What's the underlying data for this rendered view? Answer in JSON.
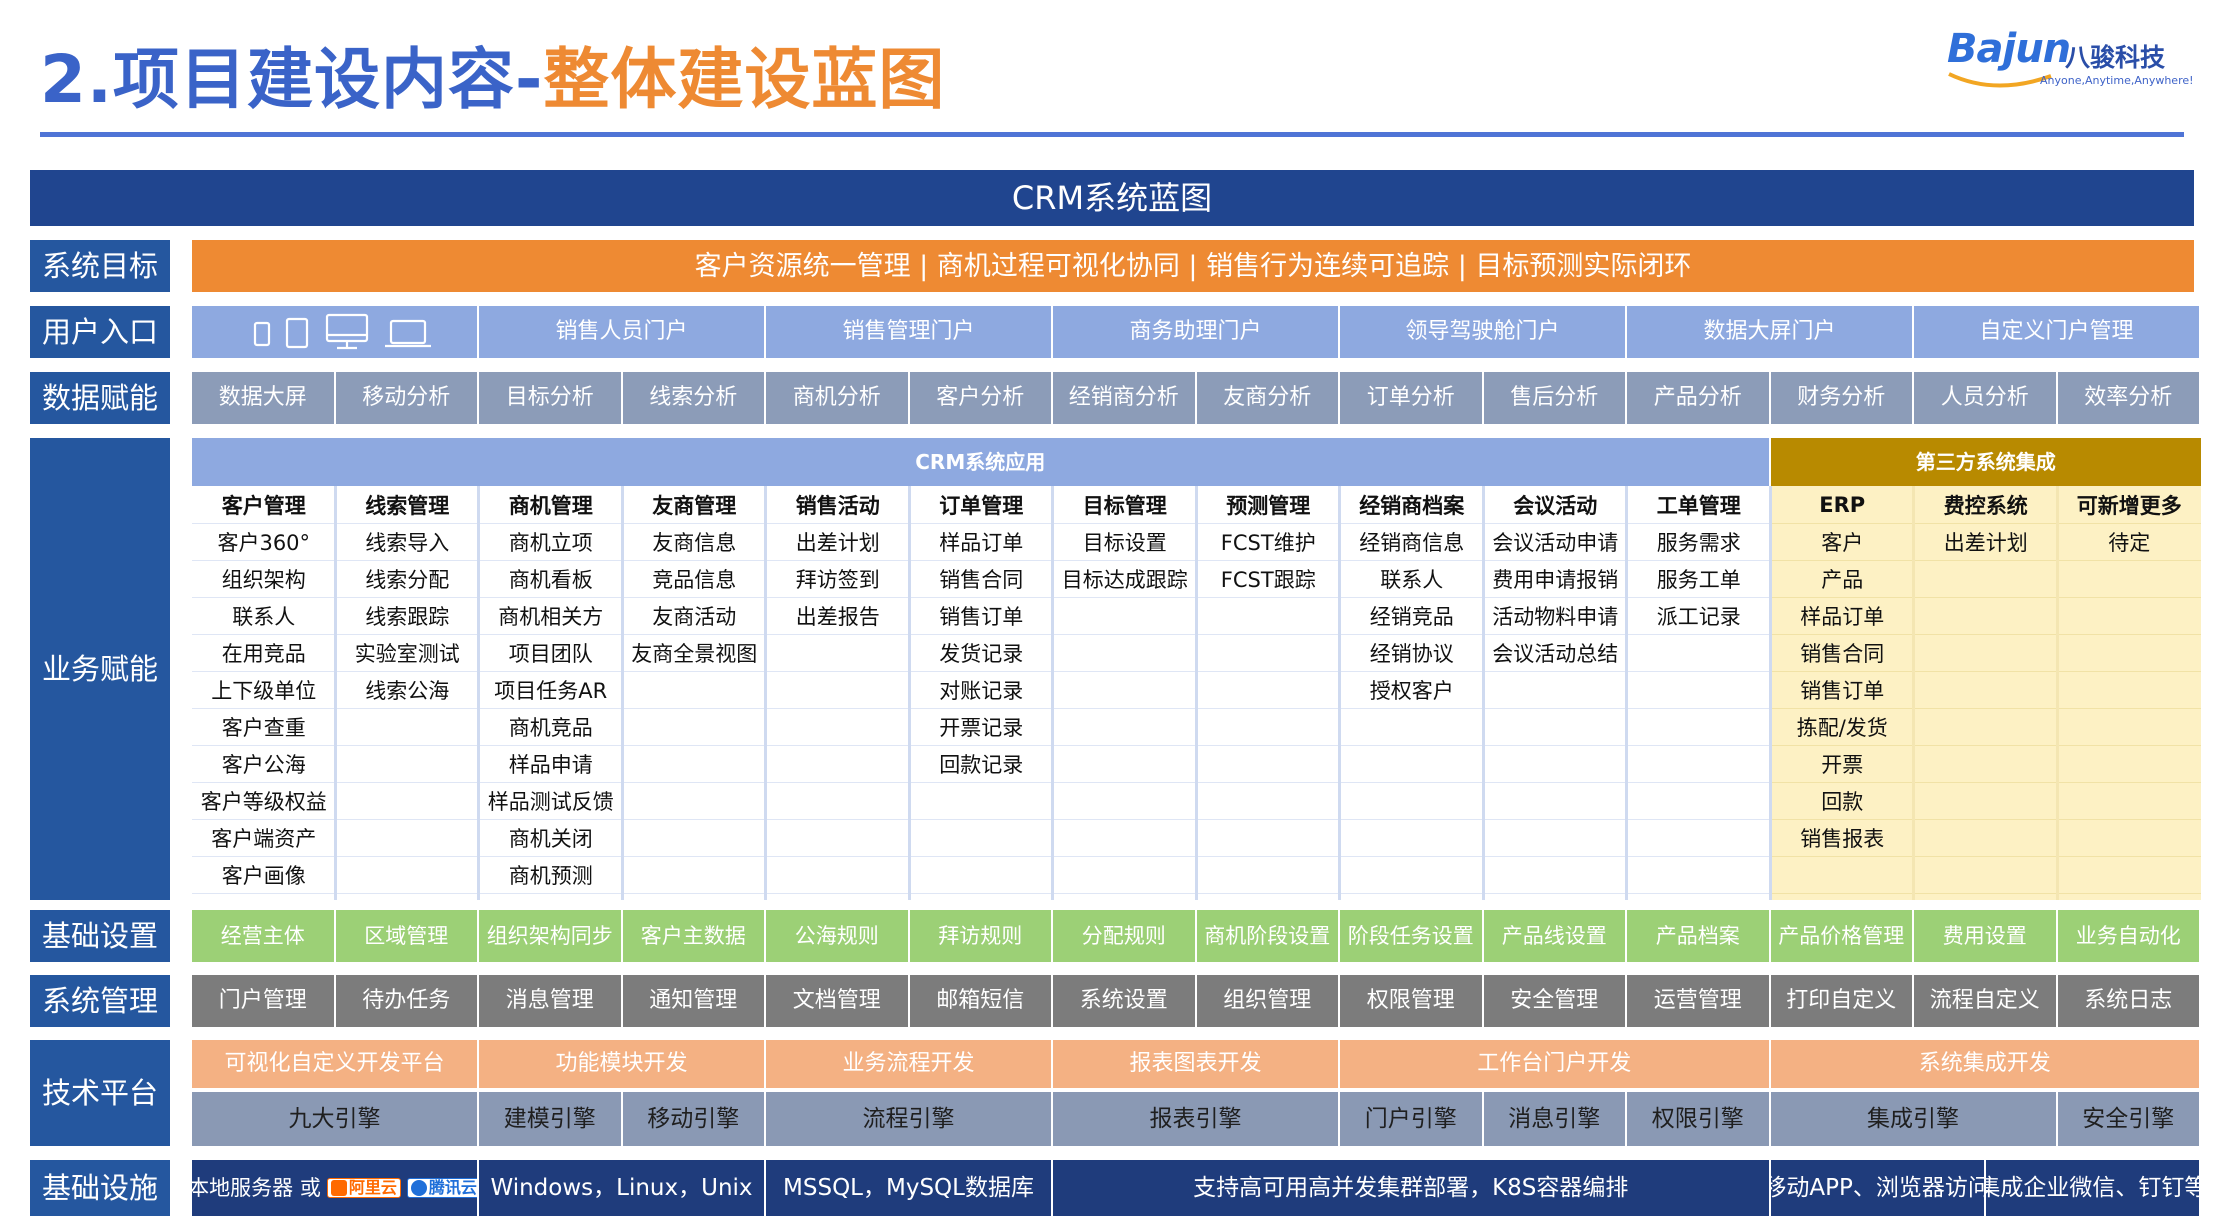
{
  "title": {
    "part1": "2.项目建设内容-",
    "part2": "整体建设蓝图"
  },
  "logo": {
    "word": "Bajun",
    "cn": "八骏科技",
    "slogan": "Anyone,Anytime,Anywhere!"
  },
  "blueprint_title": "CRM系统蓝图",
  "rows": {
    "goal": "系统目标",
    "portal": "用户入口",
    "data": "数据赋能",
    "business": "业务赋能",
    "foundation": "基础设置",
    "system": "系统管理",
    "tech": "技术平台",
    "infra": "基础设施"
  },
  "goal_text": "客户资源统一管理 | 商机过程可视化协同 | 销售行为连续可追踪 | 目标预测实际闭环",
  "portals": [
    "销售人员门户",
    "销售管理门户",
    "商务助理门户",
    "领导驾驶舱门户",
    "数据大屏门户",
    "自定义门户管理"
  ],
  "device_icons": [
    "phone-icon",
    "tablet-icon",
    "desktop-icon",
    "laptop-icon"
  ],
  "data_items": [
    "数据大屏",
    "移动分析",
    "目标分析",
    "线索分析",
    "商机分析",
    "客户分析",
    "经销商分析",
    "友商分析",
    "订单分析",
    "售后分析",
    "产品分析",
    "财务分析",
    "人员分析",
    "效率分析"
  ],
  "crm_apps_title": "CRM系统应用",
  "third_party_title": "第三方系统集成",
  "crm_modules": [
    {
      "title": "客户管理",
      "items": [
        "客户360°",
        "组织架构",
        "联系人",
        "在用竞品",
        "上下级单位",
        "客户查重",
        "客户公海",
        "客户等级权益",
        "客户端资产",
        "客户画像"
      ]
    },
    {
      "title": "线索管理",
      "items": [
        "线索导入",
        "线索分配",
        "线索跟踪",
        "实验室测试",
        "线索公海"
      ]
    },
    {
      "title": "商机管理",
      "items": [
        "商机立项",
        "商机看板",
        "商机相关方",
        "项目团队",
        "项目任务AR",
        "商机竞品",
        "样品申请",
        "样品测试反馈",
        "商机关闭",
        "商机预测"
      ]
    },
    {
      "title": "友商管理",
      "items": [
        "友商信息",
        "竞品信息",
        "友商活动",
        "友商全景视图"
      ]
    },
    {
      "title": "销售活动",
      "items": [
        "出差计划",
        "拜访签到",
        "出差报告"
      ]
    },
    {
      "title": "订单管理",
      "items": [
        "样品订单",
        "销售合同",
        "销售订单",
        "发货记录",
        "对账记录",
        "开票记录",
        "回款记录"
      ]
    },
    {
      "title": "目标管理",
      "items": [
        "目标设置",
        "目标达成跟踪"
      ]
    },
    {
      "title": "预测管理",
      "items": [
        "FCST维护",
        "FCST跟踪"
      ]
    },
    {
      "title": "经销商档案",
      "items": [
        "经销商信息",
        "联系人",
        "经销竞品",
        "经销协议",
        "授权客户"
      ]
    },
    {
      "title": "会议活动",
      "items": [
        "会议活动申请",
        "费用申请报销",
        "活动物料申请",
        "会议活动总结"
      ]
    },
    {
      "title": "工单管理",
      "items": [
        "服务需求",
        "服务工单",
        "派工记录"
      ]
    }
  ],
  "third_modules": [
    {
      "title": "ERP",
      "items": [
        "客户",
        "产品",
        "样品订单",
        "销售合同",
        "销售订单",
        "拣配/发货",
        "开票",
        "回款",
        "销售报表"
      ]
    },
    {
      "title": "费控系统",
      "items": [
        "出差计划"
      ]
    },
    {
      "title": "可新增更多",
      "items": [
        "待定"
      ]
    }
  ],
  "foundation_items": [
    "经营主体",
    "区域管理",
    "组织架构同步",
    "客户主数据",
    "公海规则",
    "拜访规则",
    "分配规则",
    "商机阶段设置",
    "阶段任务设置",
    "产品线设置",
    "产品档案",
    "产品价格管理",
    "费用设置",
    "业务自动化"
  ],
  "system_items": [
    "门户管理",
    "待办任务",
    "消息管理",
    "通知管理",
    "文档管理",
    "邮箱短信",
    "系统设置",
    "组织管理",
    "权限管理",
    "安全管理",
    "运营管理",
    "打印自定义",
    "流程自定义",
    "系统日志"
  ],
  "tech_top": [
    "可视化自定义开发平台",
    "功能模块开发",
    "业务流程开发",
    "报表图表开发",
    "工作台门户开发",
    "系统集成开发"
  ],
  "tech_engines": [
    "九大引擎",
    "建模引擎",
    "移动引擎",
    "流程引擎",
    "报表引擎",
    "门户引擎",
    "消息引擎",
    "权限引擎",
    "集成引擎",
    "安全引擎"
  ],
  "infra": {
    "servers": "本地服务器 或",
    "aliyun": "阿里云",
    "tencent": "腾讯云",
    "items": [
      "Windows，Linux，Unix",
      "MSSQL，MySQL数据库",
      "支持高可用高并发集群部署，K8S容器编排",
      "移动APP、浏览器访问",
      "集成企业微信、钉钉等"
    ]
  },
  "colors": {
    "navy": "#20458f",
    "label": "#25579f",
    "orange": "#ee8a33",
    "portal": "#8ea9e0",
    "data": "#8c9cb8",
    "green": "#9cd076",
    "gray": "#7c7c7c",
    "peach": "#f4b183",
    "gold": "#b88a00",
    "cream": "#fdf1c4"
  }
}
